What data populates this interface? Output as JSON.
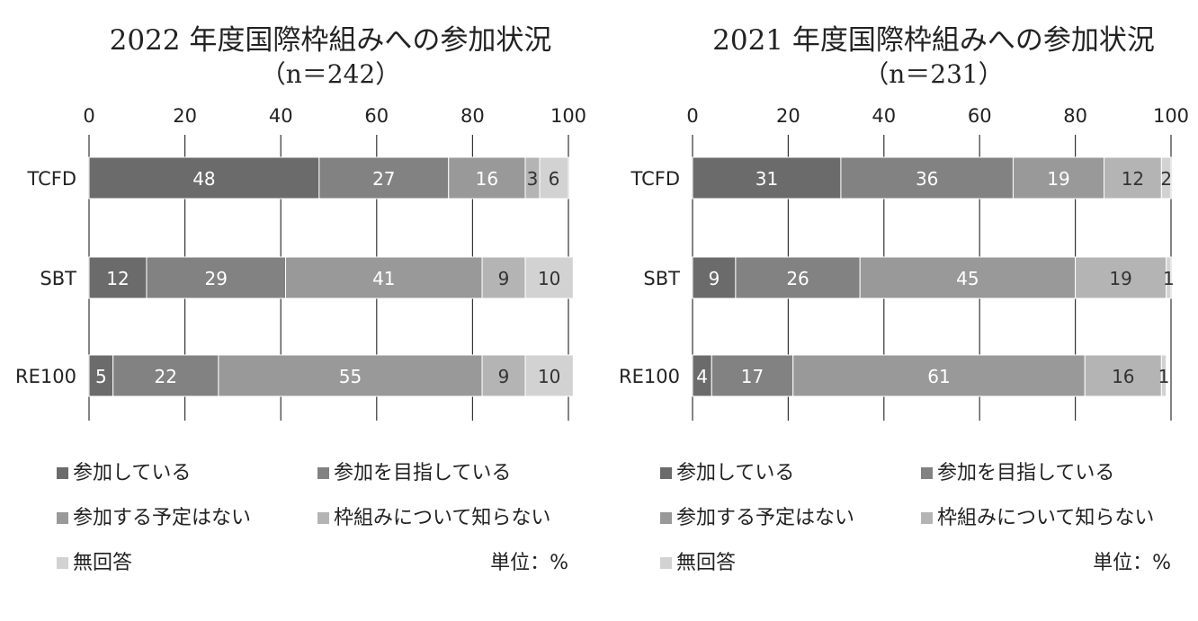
{
  "unit_label": "単位：%",
  "legend_items": [
    {
      "label": "参加している",
      "color": "#6b6b6b"
    },
    {
      "label": "参加を目指している",
      "color": "#828282"
    },
    {
      "label": "参加する予定はない",
      "color": "#999999"
    },
    {
      "label": "枠組みについて知らない",
      "color": "#b4b4b4"
    },
    {
      "label": "無回答",
      "color": "#d2d2d2"
    }
  ],
  "chart_data": [
    {
      "type": "bar",
      "orientation": "horizontal",
      "stacked": true,
      "title": "2022 年度国際枠組みへの参加状況",
      "subtitle": "（n＝242）",
      "categories": [
        "TCFD",
        "SBT",
        "RE100"
      ],
      "xlim": [
        0,
        100
      ],
      "xticks": [
        0,
        20,
        40,
        60,
        80,
        100
      ],
      "grid": true,
      "series": [
        {
          "name": "参加している",
          "values": [
            48,
            12,
            5
          ]
        },
        {
          "name": "参加を目指している",
          "values": [
            27,
            29,
            22
          ]
        },
        {
          "name": "参加する予定はない",
          "values": [
            16,
            41,
            55
          ]
        },
        {
          "name": "枠組みについて知らない",
          "values": [
            3,
            9,
            9
          ]
        },
        {
          "name": "無回答",
          "values": [
            6,
            10,
            10
          ]
        }
      ]
    },
    {
      "type": "bar",
      "orientation": "horizontal",
      "stacked": true,
      "title": "2021 年度国際枠組みへの参加状況",
      "subtitle": "（n＝231）",
      "categories": [
        "TCFD",
        "SBT",
        "RE100"
      ],
      "xlim": [
        0,
        100
      ],
      "xticks": [
        0,
        20,
        40,
        60,
        80,
        100
      ],
      "grid": true,
      "series": [
        {
          "name": "参加している",
          "values": [
            31,
            9,
            4
          ]
        },
        {
          "name": "参加を目指している",
          "values": [
            36,
            26,
            17
          ]
        },
        {
          "name": "参加する予定はない",
          "values": [
            19,
            45,
            61
          ]
        },
        {
          "name": "枠組みについて知らない",
          "values": [
            12,
            19,
            16
          ]
        },
        {
          "name": "無回答",
          "values": [
            2,
            1,
            1
          ]
        }
      ]
    }
  ]
}
